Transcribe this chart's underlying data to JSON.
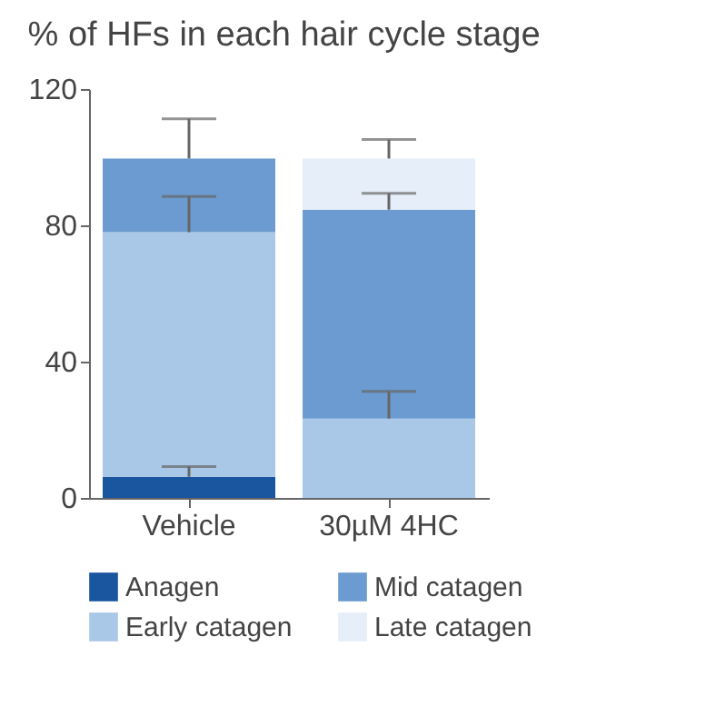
{
  "chart_data": {
    "type": "bar",
    "title": "% of HFs in each hair cycle stage",
    "categories": [
      "Vehicle",
      "30µM 4HC"
    ],
    "stacked": true,
    "series": [
      {
        "name": "Anagen",
        "color": "#1a56a0",
        "values": [
          6.2,
          null
        ],
        "errors": [
          [
            6.2,
            9.2
          ],
          null
        ]
      },
      {
        "name": "Early catagen",
        "color": "#a9c7e7",
        "values": [
          71.8,
          23.3
        ],
        "errors": [
          [
            78.0,
            88.5
          ],
          [
            23.3,
            31.3
          ]
        ]
      },
      {
        "name": "Mid catagen",
        "color": "#6b9bd0",
        "values": [
          21.6,
          61.3
        ],
        "errors": [
          [
            99.6,
            111.3
          ],
          [
            84.6,
            89.4
          ]
        ]
      },
      {
        "name": "Late catagen",
        "color": "#e6eefa",
        "values": [
          null,
          15.0
        ],
        "errors": [
          null,
          [
            99.6,
            105.2
          ]
        ]
      }
    ],
    "ylim": [
      0,
      120
    ],
    "yticks": [
      0,
      40,
      80,
      120
    ],
    "grid": false,
    "legend": "bottom"
  }
}
